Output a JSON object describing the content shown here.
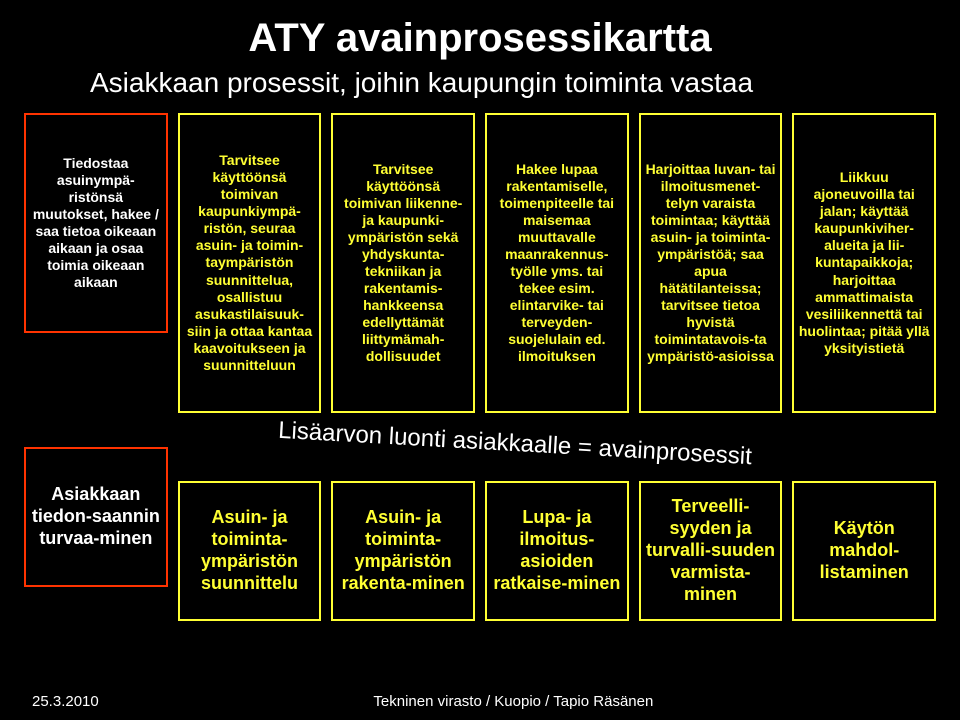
{
  "background_color": "#000000",
  "text_color": "#ffffff",
  "title": {
    "text": "ATY avainprosessikartta",
    "fontsize": 40
  },
  "subtitle": {
    "text": "Asiakkaan prosessit, joihin kaupungin toiminta vastaa",
    "fontsize": 28
  },
  "curved_label": {
    "text": "Lisäarvon luonti asiakkaalle = avainprosessit",
    "fontsize": 24
  },
  "top_fontsize": 14,
  "bottom_fontsize": 18,
  "cols": [
    {
      "name": "col-tiedonsaanti",
      "top": {
        "text": "Tiedostaa asuinympä-ristönsä muutokset, hakee / saa tietoa oikeaan aikaan ja osaa toimia oikeaan aikaan",
        "color": "#ffffff",
        "border": "#ff3300"
      },
      "bottom": {
        "text": "Asiakkaan tiedon-saannin turvaa-minen",
        "color": "#ffffff",
        "border": "#ff3300"
      }
    },
    {
      "name": "col-suunnittelu",
      "top": {
        "text": "Tarvitsee käyttöönsä toimivan kaupunkiympä-ristön, seuraa asuin- ja toimin-taympäristön suunnittelua, osallistuu asukastilaisuuk-siin ja ottaa kantaa kaavoitukseen ja suunnitteluun",
        "color": "#ffff33",
        "border": "#ffff33"
      },
      "bottom": {
        "text": "Asuin- ja toiminta-ympäristön suunnittelu",
        "color": "#ffff33",
        "border": "#ffff33"
      }
    },
    {
      "name": "col-rakentaminen",
      "top": {
        "text": "Tarvitsee käyttöönsä toimivan liikenne- ja kaupunki-ympäristön sekä yhdyskunta-tekniikan ja rakentamis-hankkeensa edellyttämät liittymämah-dollisuudet",
        "color": "#ffff33",
        "border": "#ffff33"
      },
      "bottom": {
        "text": "Asuin- ja toiminta-ympäristön rakenta-minen",
        "color": "#ffff33",
        "border": "#ffff33"
      }
    },
    {
      "name": "col-lupa",
      "top": {
        "text": "Hakee lupaa rakentamiselle, toimenpiteelle tai maisemaa muuttavalle maanrakennus-työlle yms. tai tekee esim. elintarvike- tai terveyden-suojelulain ed. ilmoituksen",
        "color": "#ffff33",
        "border": "#ffff33"
      },
      "bottom": {
        "text": "Lupa- ja ilmoitus-asioiden ratkaise-minen",
        "color": "#ffff33",
        "border": "#ffff33"
      }
    },
    {
      "name": "col-terveellisyys",
      "top": {
        "text": "Harjoittaa luvan- tai ilmoitusmenet-telyn varaista toimintaa; käyttää asuin- ja toiminta-ympäristöä; saa apua hätätilanteissa; tarvitsee tietoa hyvistä toimintatavois-ta ympäristö-asioissa",
        "color": "#ffff33",
        "border": "#ffff33"
      },
      "bottom": {
        "text": "Terveelli-syyden ja turvalli-suuden varmista-minen",
        "color": "#ffff33",
        "border": "#ffff33"
      }
    },
    {
      "name": "col-kaytto",
      "top": {
        "text": "Liikkuu ajoneuvoilla tai jalan; käyttää kaupunkiviher-alueita ja lii-kuntapaikkoja; harjoittaa ammattimaista vesiliikennettä tai huolintaa; pitää yllä yksityistietä",
        "color": "#ffff33",
        "border": "#ffff33"
      },
      "bottom": {
        "text": "Käytön mahdol-listaminen",
        "color": "#ffff33",
        "border": "#ffff33"
      }
    }
  ],
  "footer": {
    "date": "25.3.2010",
    "org": "Tekninen virasto / Kuopio / Tapio Räsänen"
  }
}
